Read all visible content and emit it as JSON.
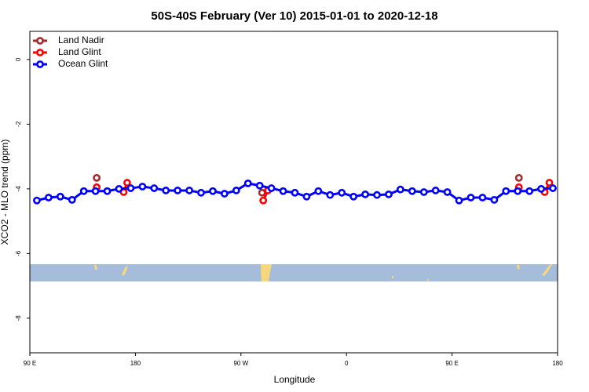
{
  "chart_data": {
    "type": "line",
    "title": "50S-40S February (Ver 10)   2015-01-01 to 2020-12-18",
    "x_label": "Longitude",
    "y_label": "XCO2 - MLO trend (ppm)",
    "xlim": [
      90,
      540
    ],
    "ylim": [
      -9.07,
      0.87
    ],
    "xticks": [
      {
        "value": 90,
        "label": "90 E"
      },
      {
        "value": 180,
        "label": "180"
      },
      {
        "value": 270,
        "label": "90 W"
      },
      {
        "value": 360,
        "label": "0"
      },
      {
        "value": 450,
        "label": "90 E"
      },
      {
        "value": 540,
        "label": "180"
      }
    ],
    "yticks": [
      0,
      -2,
      -4,
      -6,
      -8
    ],
    "legend": "top-left",
    "series": [
      {
        "name": "Land Nadir",
        "color": "#a52a2a",
        "x": [
          147,
          288,
          507
        ],
        "values": [
          -3.66,
          -4.12,
          -3.66
        ]
      },
      {
        "name": "Land Glint",
        "color": "#ff0000",
        "x": [
          147,
          170,
          173,
          289,
          293,
          507,
          529,
          533
        ],
        "values": [
          -3.95,
          -4.1,
          -3.81,
          -4.36,
          -4.05,
          -3.95,
          -4.1,
          -3.81
        ]
      },
      {
        "name": "Ocean Glint",
        "color": "#0000ff",
        "x": [
          96,
          106,
          116,
          126,
          136,
          146,
          156,
          166,
          176,
          186,
          196,
          206,
          216,
          226,
          236,
          246,
          256,
          266,
          276,
          286,
          296,
          306,
          316,
          326,
          336,
          346,
          356,
          366,
          376,
          386,
          396,
          406,
          416,
          426,
          436,
          446,
          456,
          466,
          476,
          486,
          496,
          506,
          516,
          526,
          536
        ],
        "values": [
          -4.36,
          -4.27,
          -4.24,
          -4.34,
          -4.07,
          -4.07,
          -4.07,
          -4.0,
          -3.98,
          -3.93,
          -3.98,
          -4.05,
          -4.05,
          -4.05,
          -4.12,
          -4.07,
          -4.15,
          -4.05,
          -3.83,
          -3.9,
          -3.98,
          -4.07,
          -4.12,
          -4.24,
          -4.07,
          -4.19,
          -4.12,
          -4.24,
          -4.17,
          -4.19,
          -4.17,
          -4.02,
          -4.07,
          -4.1,
          -4.05,
          -4.1,
          -4.36,
          -4.27,
          -4.27,
          -4.34,
          -4.07,
          -4.07,
          -4.07,
          -4.0,
          -3.98
        ]
      }
    ]
  }
}
